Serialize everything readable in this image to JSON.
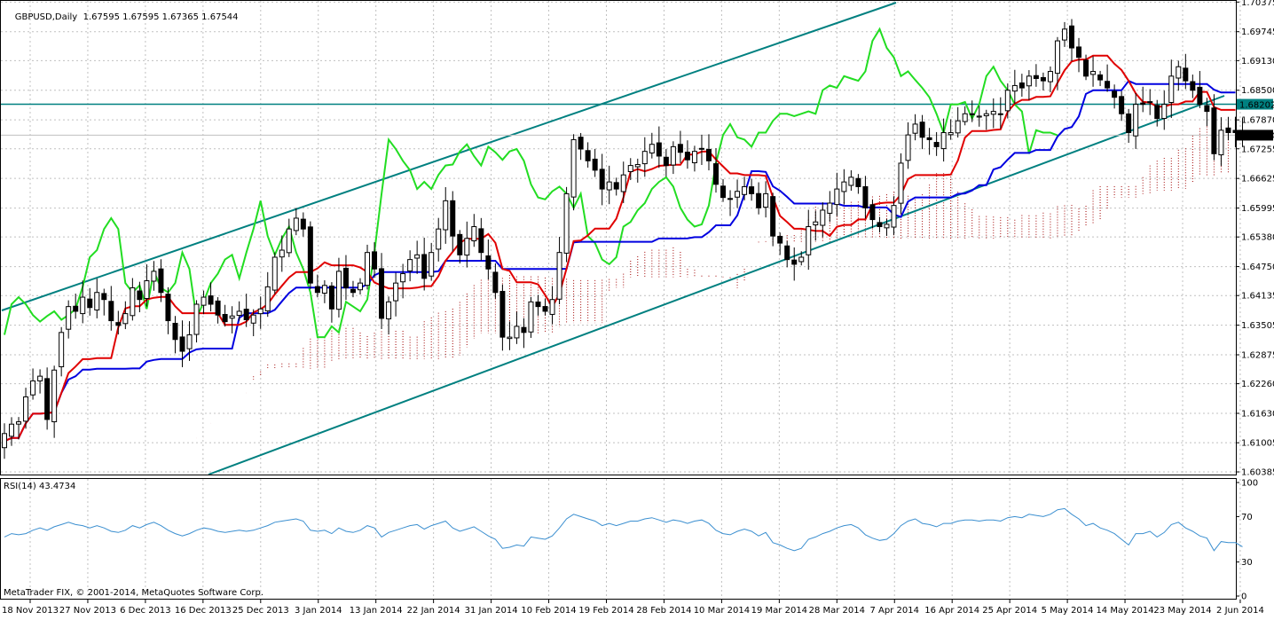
{
  "header": {
    "symbol_label": "GBPUSD,Daily",
    "ohlc": "1.67595 1.67595 1.67365 1.67544"
  },
  "rsi_panel": {
    "label": "RSI(14) 43.4734"
  },
  "footer": {
    "copyright": "MetaTrader FIX, © 2001-2014, MetaQuotes Software Corp."
  },
  "colors": {
    "background": "#ffffff",
    "grid": "#c0c0c0",
    "candle": "#000000",
    "tenkan": "#e00000",
    "kijun": "#0000e0",
    "chikou": "#22dd22",
    "cloud": "#a00000",
    "channel": "#008080",
    "rsi": "#3b8fd0",
    "marker_fill": "#008080",
    "price_fill": "#000000"
  },
  "chart_data": [
    {
      "type": "candlestick",
      "title": "GBPUSD,Daily",
      "indicators": [
        "Ichimoku Kinko Hyo",
        "Ascending trend channel",
        "Horizontal level"
      ],
      "y_ticks": [
        "1.70375",
        "1.69745",
        "1.69130",
        "1.68500",
        "1.67870",
        "1.67255",
        "1.66625",
        "1.65995",
        "1.65380",
        "1.64750",
        "1.64135",
        "1.63505",
        "1.62875",
        "1.62260",
        "1.61630",
        "1.61005",
        "1.60385"
      ],
      "ylim": [
        1.6031,
        1.704
      ],
      "x_ticks": [
        "18 Nov 2013",
        "27 Nov 2013",
        "6 Dec 2013",
        "16 Dec 2013",
        "25 Dec 2013",
        "3 Jan 2014",
        "13 Jan 2014",
        "22 Jan 2014",
        "31 Jan 2014",
        "10 Feb 2014",
        "19 Feb 2014",
        "28 Feb 2014",
        "10 Mar 2014",
        "19 Mar 2014",
        "28 Mar 2014",
        "7 Apr 2014",
        "16 Apr 2014",
        "25 Apr 2014",
        "5 May 2014",
        "14 May 2014",
        "23 May 2014",
        "2 Jun 2014"
      ],
      "horizontal_level": "1.68202",
      "current_price": "1.67544",
      "close": [
        1.612,
        1.614,
        1.6145,
        1.6198,
        1.6232,
        1.6242,
        1.615,
        1.6255,
        1.6335,
        1.639,
        1.638,
        1.641,
        1.6388,
        1.642,
        1.6405,
        1.636,
        1.635,
        1.6375,
        1.643,
        1.6405,
        1.6445,
        1.6465,
        1.642,
        1.636,
        1.632,
        1.6295,
        1.633,
        1.6395,
        1.641,
        1.6395,
        1.6372,
        1.6358,
        1.637,
        1.638,
        1.6362,
        1.6372,
        1.6385,
        1.6432,
        1.6495,
        1.651,
        1.6555,
        1.6578,
        1.6555,
        1.644,
        1.642,
        1.6435,
        1.6385,
        1.6465,
        1.643,
        1.642,
        1.644,
        1.6505,
        1.647,
        1.6365,
        1.64,
        1.644,
        1.646,
        1.649,
        1.65,
        1.645,
        1.6505,
        1.6555,
        1.6615,
        1.654,
        1.65,
        1.6535,
        1.656,
        1.6505,
        1.647,
        1.642,
        1.6325,
        1.6325,
        1.6348,
        1.6335,
        1.64,
        1.639,
        1.638,
        1.6405,
        1.6505,
        1.663,
        1.6745,
        1.6725,
        1.67,
        1.668,
        1.664,
        1.6655,
        1.664,
        1.667,
        1.669,
        1.6692,
        1.672,
        1.6735,
        1.671,
        1.669,
        1.673,
        1.6718,
        1.6702,
        1.672,
        1.6725,
        1.67,
        1.665,
        1.6622,
        1.6618,
        1.6635,
        1.6645,
        1.663,
        1.66,
        1.663,
        1.654,
        1.6525,
        1.649,
        1.648,
        1.6495,
        1.656,
        1.657,
        1.6595,
        1.661,
        1.664,
        1.6655,
        1.6665,
        1.6645,
        1.66,
        1.6575,
        1.656,
        1.6565,
        1.6605,
        1.6695,
        1.6755,
        1.6778,
        1.675,
        1.6745,
        1.673,
        1.676,
        1.676,
        1.6785,
        1.68,
        1.68,
        1.6795,
        1.68,
        1.6805,
        1.68,
        1.685,
        1.686,
        1.6855,
        1.688,
        1.6875,
        1.687,
        1.689,
        1.6955,
        1.698,
        1.694,
        1.692,
        1.688,
        1.689,
        1.6872,
        1.6855,
        1.6835,
        1.68,
        1.676,
        1.682,
        1.682,
        1.6825,
        1.679,
        1.682,
        1.688,
        1.69,
        1.687,
        1.685,
        1.682,
        1.6805,
        1.6715,
        1.6765,
        1.676,
        1.676,
        1.6754
      ]
    },
    {
      "type": "line",
      "title": "RSI(14) 43.4734",
      "y_ticks": [
        "100",
        "70",
        "30",
        "0"
      ],
      "ylim": [
        0,
        100
      ],
      "series": [
        {
          "name": "RSI(14)",
          "values": [
            52,
            55,
            54,
            55,
            58,
            60,
            58,
            61,
            63,
            65,
            63,
            62,
            60,
            62,
            60,
            57,
            56,
            58,
            62,
            60,
            63,
            65,
            62,
            58,
            55,
            53,
            55,
            58,
            60,
            59,
            57,
            56,
            57,
            58,
            57,
            58,
            60,
            62,
            65,
            66,
            67,
            68,
            66,
            58,
            57,
            58,
            55,
            60,
            57,
            56,
            58,
            62,
            60,
            52,
            56,
            58,
            60,
            62,
            63,
            59,
            62,
            64,
            66,
            60,
            57,
            59,
            61,
            57,
            53,
            50,
            42,
            43,
            45,
            44,
            52,
            51,
            50,
            53,
            60,
            68,
            72,
            70,
            68,
            66,
            62,
            64,
            62,
            64,
            66,
            66,
            68,
            69,
            67,
            65,
            67,
            66,
            64,
            66,
            67,
            64,
            58,
            55,
            54,
            57,
            59,
            57,
            53,
            56,
            47,
            45,
            42,
            40,
            42,
            50,
            52,
            55,
            57,
            60,
            62,
            63,
            60,
            54,
            51,
            49,
            50,
            55,
            62,
            66,
            68,
            64,
            63,
            61,
            64,
            64,
            66,
            67,
            67,
            66,
            67,
            67,
            66,
            69,
            70,
            69,
            72,
            71,
            70,
            72,
            76,
            77,
            72,
            68,
            62,
            64,
            60,
            58,
            55,
            50,
            45,
            55,
            55,
            57,
            52,
            56,
            63,
            65,
            60,
            57,
            53,
            51,
            40,
            48,
            47,
            47,
            43.47
          ]
        }
      ]
    }
  ]
}
